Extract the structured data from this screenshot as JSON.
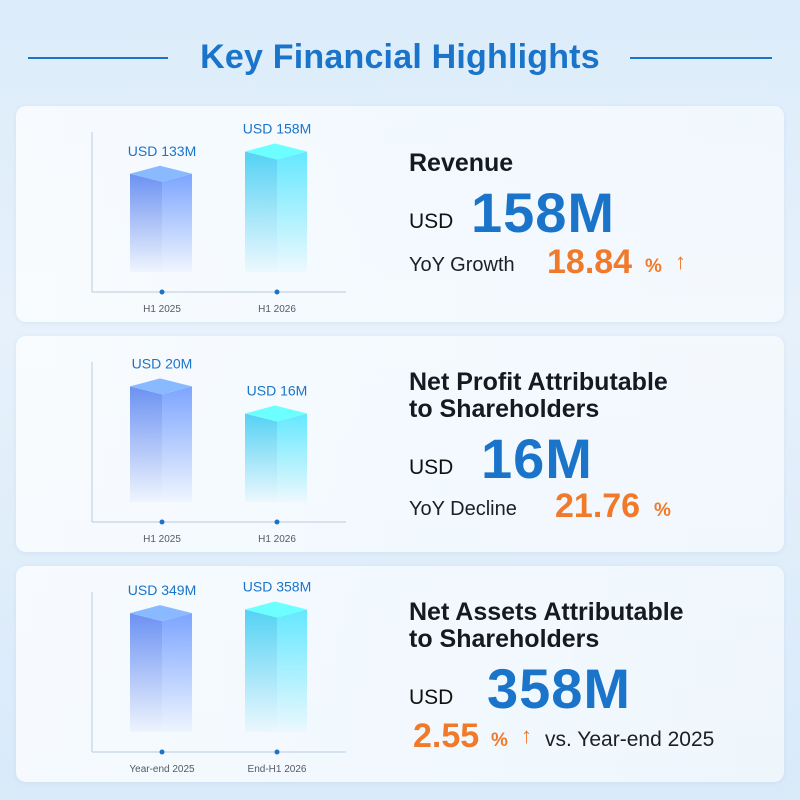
{
  "page_title": "Key Financial Highlights",
  "colors": {
    "accent": "#1a74c9",
    "highlight": "#f07a2a",
    "bar_first": "#6b91f2",
    "bar_second": "#54d2f4"
  },
  "revenue": {
    "title": "Revenue",
    "currency": "USD",
    "value": "158M",
    "change_label": "YoY Growth",
    "change_value": "18.84",
    "change_unit": "%",
    "change_icon": "arrow-up-icon"
  },
  "profit": {
    "title_line1": "Net Profit Attributable",
    "title_line2": "to Shareholders",
    "currency": "USD",
    "value": "16M",
    "change_label": "YoY Decline",
    "change_value": "21.76",
    "change_unit": "%"
  },
  "assets": {
    "title_line1": "Net Assets Attributable",
    "title_line2": "to Shareholders",
    "currency": "USD",
    "value": "358M",
    "change_value": "2.55",
    "change_unit": "%",
    "change_icon": "arrow-up-icon",
    "change_suffix": "vs. Year-end 2025"
  },
  "chart_data": [
    {
      "type": "bar",
      "categories": [
        "H1 2025",
        "H1 2026"
      ],
      "values": [
        133,
        158
      ],
      "labels": [
        "USD 133M",
        "USD 158M"
      ],
      "ylim": [
        0,
        180
      ],
      "unit": "USD M"
    },
    {
      "type": "bar",
      "categories": [
        "H1 2025",
        "H1 2026"
      ],
      "values": [
        20,
        16
      ],
      "labels": [
        "USD 20M",
        "USD 16M"
      ],
      "ylim": [
        0,
        23.6
      ],
      "unit": "USD M"
    },
    {
      "type": "bar",
      "categories": [
        "Year-end 2025",
        "End-H1 2026"
      ],
      "values": [
        349,
        358
      ],
      "labels": [
        "USD 349M",
        "USD 358M"
      ],
      "ylim": [
        0,
        402
      ],
      "unit": "USD M"
    }
  ]
}
